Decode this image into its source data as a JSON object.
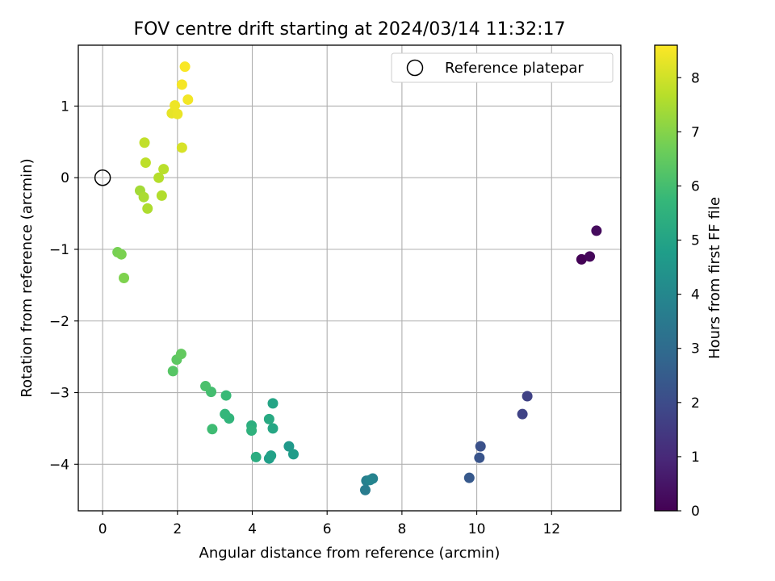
{
  "chart_data": {
    "type": "scatter",
    "title": "FOV centre drift starting at 2024/03/14 11:32:17",
    "xlabel": "Angular distance from reference (arcmin)",
    "ylabel": "Rotation from reference (arcmin)",
    "xlim": [
      -0.65,
      13.85
    ],
    "ylim": [
      -4.65,
      1.85
    ],
    "xticks": [
      0,
      2,
      4,
      6,
      8,
      10,
      12
    ],
    "yticks": [
      -4,
      -3,
      -2,
      -1,
      0,
      1
    ],
    "grid": true,
    "legend": {
      "placement": "upper-right",
      "entries": [
        "Reference platepar"
      ]
    },
    "colorbar": {
      "label": "Hours from first FF file",
      "min": 0,
      "max": 8.6,
      "ticks": [
        0,
        1,
        2,
        3,
        4,
        5,
        6,
        7,
        8
      ],
      "colormap": "viridis"
    },
    "reference_point": {
      "x": 0,
      "y": 0
    },
    "points": [
      {
        "x": 12.8,
        "y": -1.14,
        "h": 0.05
      },
      {
        "x": 13.02,
        "y": -1.1,
        "h": 0.15
      },
      {
        "x": 13.2,
        "y": -0.74,
        "h": 0.25
      },
      {
        "x": 11.22,
        "y": -3.3,
        "h": 1.75
      },
      {
        "x": 11.35,
        "y": -3.05,
        "h": 1.7
      },
      {
        "x": 10.1,
        "y": -3.75,
        "h": 2.15
      },
      {
        "x": 10.07,
        "y": -3.91,
        "h": 2.25
      },
      {
        "x": 9.8,
        "y": -4.19,
        "h": 2.4
      },
      {
        "x": 7.02,
        "y": -4.36,
        "h": 3.6
      },
      {
        "x": 7.05,
        "y": -4.23,
        "h": 3.7
      },
      {
        "x": 7.22,
        "y": -4.2,
        "h": 3.8
      },
      {
        "x": 7.15,
        "y": -4.22,
        "h": 3.9
      },
      {
        "x": 4.98,
        "y": -3.75,
        "h": 4.6
      },
      {
        "x": 5.1,
        "y": -3.86,
        "h": 4.7
      },
      {
        "x": 4.45,
        "y": -3.92,
        "h": 4.8
      },
      {
        "x": 4.5,
        "y": -3.88,
        "h": 4.9
      },
      {
        "x": 4.55,
        "y": -3.15,
        "h": 5.0
      },
      {
        "x": 4.55,
        "y": -3.5,
        "h": 5.1
      },
      {
        "x": 4.45,
        "y": -3.37,
        "h": 5.2
      },
      {
        "x": 4.1,
        "y": -3.9,
        "h": 5.3
      },
      {
        "x": 3.98,
        "y": -3.46,
        "h": 5.4
      },
      {
        "x": 3.98,
        "y": -3.53,
        "h": 5.5
      },
      {
        "x": 3.38,
        "y": -3.36,
        "h": 5.6
      },
      {
        "x": 3.27,
        "y": -3.3,
        "h": 5.7
      },
      {
        "x": 3.3,
        "y": -3.04,
        "h": 5.8
      },
      {
        "x": 2.93,
        "y": -3.51,
        "h": 5.9
      },
      {
        "x": 2.9,
        "y": -2.99,
        "h": 6.0
      },
      {
        "x": 2.75,
        "y": -2.91,
        "h": 6.1
      },
      {
        "x": 1.88,
        "y": -2.7,
        "h": 6.3
      },
      {
        "x": 1.98,
        "y": -2.54,
        "h": 6.4
      },
      {
        "x": 2.1,
        "y": -2.46,
        "h": 6.5
      },
      {
        "x": 0.4,
        "y": -1.04,
        "h": 6.8
      },
      {
        "x": 0.5,
        "y": -1.07,
        "h": 6.85
      },
      {
        "x": 0.57,
        "y": -1.4,
        "h": 6.9
      },
      {
        "x": 1.0,
        "y": -0.18,
        "h": 7.4
      },
      {
        "x": 1.1,
        "y": -0.27,
        "h": 7.5
      },
      {
        "x": 1.2,
        "y": -0.43,
        "h": 7.55
      },
      {
        "x": 1.58,
        "y": -0.25,
        "h": 7.6
      },
      {
        "x": 1.5,
        "y": 0.0,
        "h": 7.65
      },
      {
        "x": 1.63,
        "y": 0.12,
        "h": 7.7
      },
      {
        "x": 1.15,
        "y": 0.21,
        "h": 7.75
      },
      {
        "x": 1.12,
        "y": 0.49,
        "h": 7.8
      },
      {
        "x": 2.12,
        "y": 0.42,
        "h": 8.1
      },
      {
        "x": 1.85,
        "y": 0.9,
        "h": 8.3
      },
      {
        "x": 2.0,
        "y": 0.89,
        "h": 8.35
      },
      {
        "x": 1.93,
        "y": 1.01,
        "h": 8.4
      },
      {
        "x": 2.28,
        "y": 1.09,
        "h": 8.45
      },
      {
        "x": 2.12,
        "y": 1.3,
        "h": 8.5
      },
      {
        "x": 2.2,
        "y": 1.55,
        "h": 8.55
      }
    ]
  }
}
